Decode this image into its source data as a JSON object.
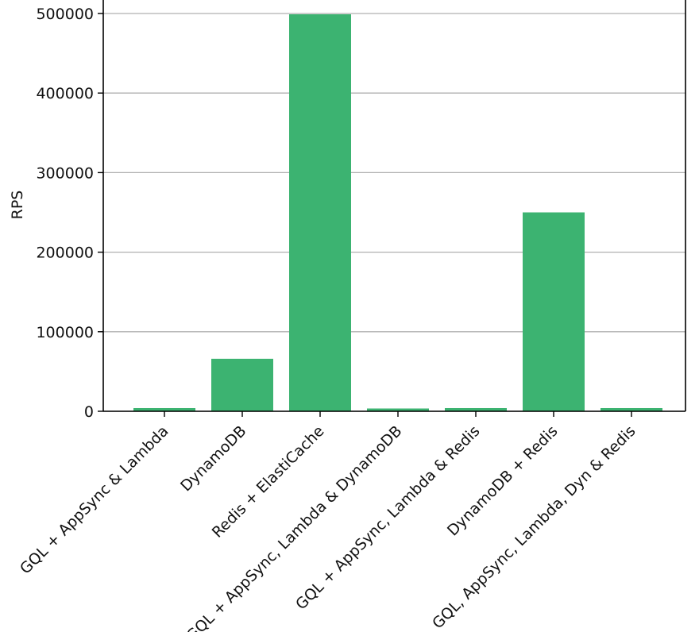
{
  "chart_data": {
    "type": "bar",
    "title": "",
    "xlabel": "",
    "ylabel": "RPS",
    "categories": [
      "GQL + AppSync & Lambda",
      "DynamoDB",
      "Redis + ElastiCache",
      "GQL + AppSync, Lambda & DynamoDB",
      "GQL + AppSync, Lambda & Redis",
      "DynamoDB + Redis",
      "GQL, AppSync, Lambda, Dyn & Redis"
    ],
    "values": [
      4000,
      66000,
      499000,
      3500,
      4000,
      250000,
      4000
    ],
    "ylim": [
      0,
      500000
    ],
    "yticks": [
      0,
      100000,
      200000,
      300000,
      400000,
      500000
    ],
    "grid": "horizontal",
    "bar_color": "#3cb371"
  }
}
